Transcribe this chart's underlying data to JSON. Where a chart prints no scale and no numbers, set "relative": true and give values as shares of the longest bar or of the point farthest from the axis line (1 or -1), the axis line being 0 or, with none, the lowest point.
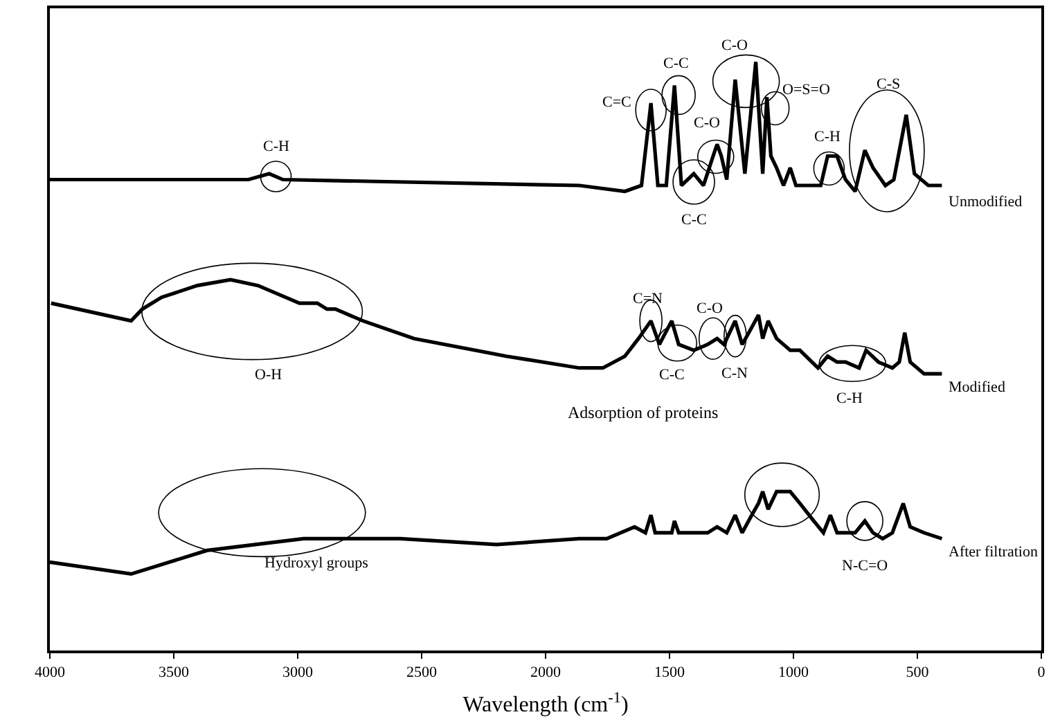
{
  "chart_data": {
    "type": "line",
    "relative": true,
    "xlabel": "Wavelength (cm$^{-1}$)",
    "xlim": [
      4000,
      0
    ],
    "xticks": [
      4000,
      3500,
      3000,
      2500,
      2000,
      1500,
      1000,
      500,
      0
    ],
    "legend": false,
    "marker": "none",
    "line_style": "solid",
    "series": [
      {
        "name": "Unmodified",
        "color": "#000000",
        "x": [
          4000,
          3199,
          3115,
          3060,
          1864,
          1680,
          1613,
          1575,
          1547,
          1513,
          1480,
          1452,
          1402,
          1363,
          1324,
          1308,
          1291,
          1269,
          1235,
          1196,
          1152,
          1124,
          1107,
          1091,
          1068,
          1040,
          1013,
          990,
          890,
          862,
          824,
          790,
          751,
          712,
          679,
          629,
          595,
          545,
          512,
          456,
          401
        ],
        "values": [
          0.8,
          0.8,
          0.81,
          0.8,
          0.79,
          0.78,
          0.79,
          0.93,
          0.79,
          0.79,
          0.96,
          0.79,
          0.81,
          0.79,
          0.84,
          0.86,
          0.84,
          0.8,
          0.97,
          0.81,
          1.0,
          0.81,
          0.94,
          0.84,
          0.82,
          0.79,
          0.82,
          0.79,
          0.79,
          0.84,
          0.84,
          0.8,
          0.78,
          0.85,
          0.82,
          0.79,
          0.8,
          0.91,
          0.81,
          0.79,
          0.79
        ]
      },
      {
        "name": "Modified",
        "color": "#000000",
        "x": [
          3995,
          3672,
          3627,
          3549,
          3405,
          3271,
          3160,
          2993,
          2921,
          2882,
          2848,
          2737,
          2531,
          2159,
          1864,
          1769,
          1680,
          1625,
          1575,
          1541,
          1491,
          1463,
          1402,
          1346,
          1308,
          1280,
          1235,
          1207,
          1180,
          1141,
          1124,
          1102,
          1068,
          1013,
          974,
          901,
          862,
          824,
          790,
          735,
          707,
          657,
          601,
          573,
          551,
          529,
          473,
          401
        ],
        "values": [
          0.59,
          0.56,
          0.58,
          0.6,
          0.62,
          0.63,
          0.62,
          0.59,
          0.59,
          0.58,
          0.58,
          0.56,
          0.53,
          0.5,
          0.48,
          0.48,
          0.5,
          0.53,
          0.56,
          0.52,
          0.56,
          0.52,
          0.51,
          0.52,
          0.53,
          0.52,
          0.56,
          0.52,
          0.54,
          0.57,
          0.53,
          0.56,
          0.53,
          0.51,
          0.51,
          0.48,
          0.5,
          0.49,
          0.49,
          0.48,
          0.51,
          0.49,
          0.48,
          0.49,
          0.54,
          0.49,
          0.47,
          0.47
        ]
      },
      {
        "name": "After filtration",
        "color": "#000000",
        "x": [
          4000,
          3672,
          3366,
          2976,
          2587,
          2198,
          1864,
          1753,
          1641,
          1597,
          1575,
          1558,
          1491,
          1480,
          1463,
          1346,
          1308,
          1269,
          1235,
          1207,
          1168,
          1141,
          1124,
          1102,
          1068,
          1013,
          974,
          918,
          879,
          851,
          824,
          790,
          751,
          712,
          679,
          640,
          601,
          557,
          529,
          473,
          401
        ],
        "values": [
          0.15,
          0.13,
          0.17,
          0.19,
          0.19,
          0.18,
          0.19,
          0.19,
          0.21,
          0.2,
          0.23,
          0.2,
          0.2,
          0.22,
          0.2,
          0.2,
          0.21,
          0.2,
          0.23,
          0.2,
          0.23,
          0.25,
          0.27,
          0.24,
          0.27,
          0.27,
          0.25,
          0.22,
          0.2,
          0.23,
          0.2,
          0.2,
          0.2,
          0.22,
          0.2,
          0.19,
          0.2,
          0.25,
          0.21,
          0.2,
          0.19
        ]
      }
    ],
    "annotations": [
      {
        "text": "C-H",
        "x": 3088,
        "y": 0.81
      },
      {
        "text": "C=C",
        "x": 1575,
        "y": 0.93
      },
      {
        "text": "C-C",
        "x": 1480,
        "y": 0.96
      },
      {
        "text": "C-O",
        "x": 1308,
        "y": 0.86
      },
      {
        "text": "C-C",
        "x": 1402,
        "y": 0.81
      },
      {
        "text": "C-O",
        "x": 1152,
        "y": 1.0
      },
      {
        "text": "O=S=O",
        "x": 1107,
        "y": 0.94
      },
      {
        "text": "C-H",
        "x": 862,
        "y": 0.84
      },
      {
        "text": "C-S",
        "x": 545,
        "y": 0.91
      },
      {
        "text": "C=N",
        "x": 1575,
        "y": 0.56
      },
      {
        "text": "C-C",
        "x": 1463,
        "y": 0.52
      },
      {
        "text": "C-O",
        "x": 1308,
        "y": 0.53
      },
      {
        "text": "C-N",
        "x": 1235,
        "y": 0.56
      },
      {
        "text": "C-H",
        "x": 790,
        "y": 0.49
      },
      {
        "text": "N-C=O",
        "x": 712,
        "y": 0.22
      },
      "O-H",
      "Hydroxyl groups",
      "Adsorption of proteins"
    ]
  }
}
